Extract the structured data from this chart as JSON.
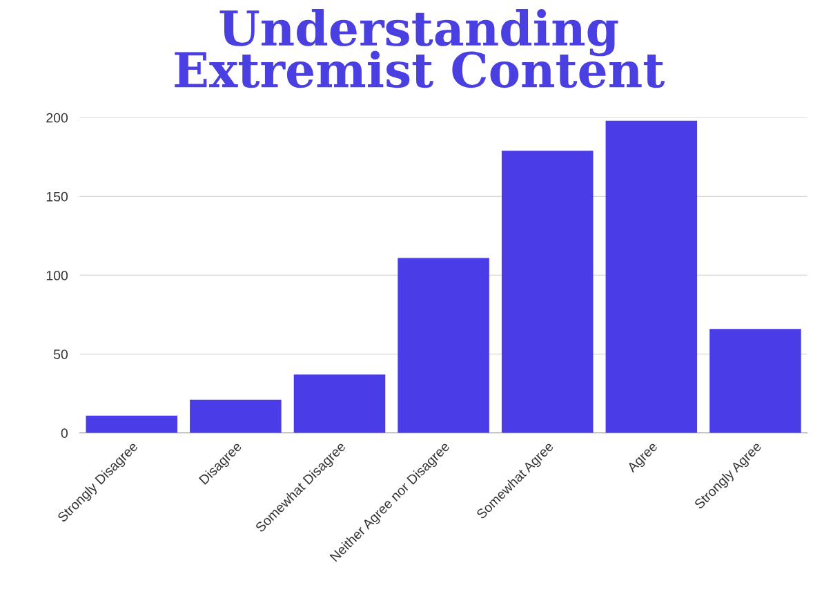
{
  "chart_data": {
    "type": "bar",
    "title": "Understanding\nExtremist Content",
    "categories": [
      "Strongly Disagree",
      "Disagree",
      "Somewhat Disagree",
      "Neither Agree nor Disagree",
      "Somewhat Agree",
      "Agree",
      "Strongly Agree"
    ],
    "values": [
      11,
      21,
      37,
      111,
      179,
      198,
      66
    ],
    "color": "#4a3de8",
    "ylim": [
      0,
      200
    ],
    "yticks": [
      0,
      50,
      100,
      150,
      200
    ],
    "grid": "y",
    "legend": false
  }
}
